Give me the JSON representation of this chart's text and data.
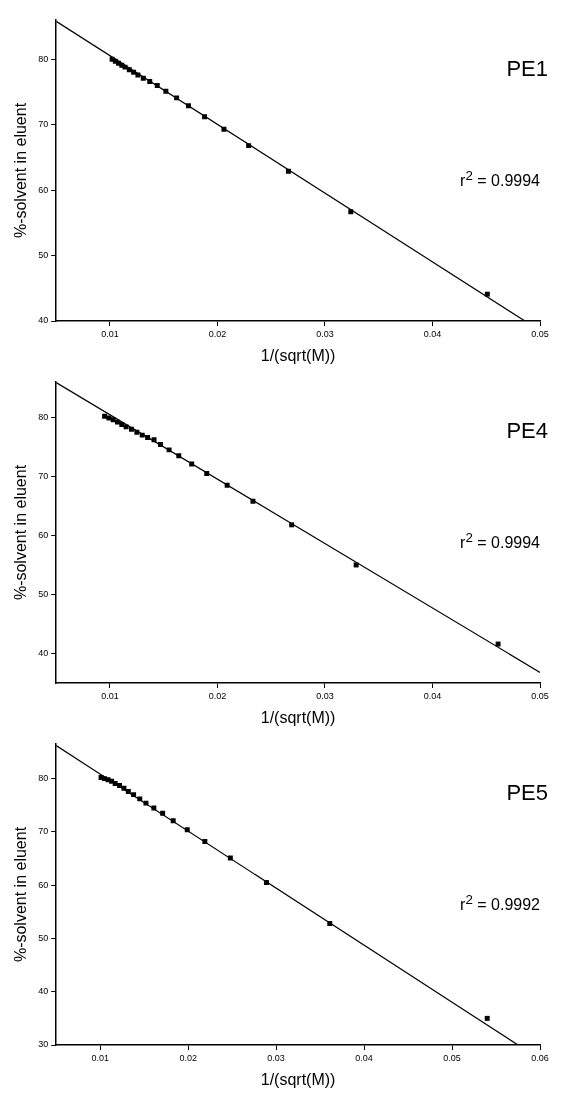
{
  "chart_data": [
    {
      "type": "scatter",
      "title": "PE1",
      "xlabel": "1/(sqrt(M))",
      "ylabel": "%-solvent in eluent",
      "annotations": [
        "r$^{2}$ = 0.9994"
      ],
      "xlim": [
        0.005,
        0.05
      ],
      "xticks": [
        0.01,
        0.02,
        0.03,
        0.04,
        0.05
      ],
      "ylim": [
        40,
        86
      ],
      "yticks": [
        40,
        50,
        60,
        70,
        80
      ],
      "series": [
        {
          "type": "scatter",
          "marker": "square",
          "color": "#000000",
          "x": [
            0.0102,
            0.0105,
            0.0108,
            0.0111,
            0.0114,
            0.0118,
            0.0122,
            0.0126,
            0.0131,
            0.0137,
            0.0144,
            0.0152,
            0.0162,
            0.0173,
            0.0188,
            0.0206,
            0.0229,
            0.0266,
            0.0324,
            0.0451
          ],
          "values": [
            80.0,
            79.7,
            79.4,
            79.1,
            78.8,
            78.4,
            78.0,
            77.6,
            77.1,
            76.6,
            76.0,
            75.1,
            74.1,
            72.9,
            71.2,
            69.3,
            66.8,
            62.9,
            56.7,
            44.1
          ]
        },
        {
          "type": "line",
          "color": "#000000",
          "x": [
            0.005,
            0.0486
          ],
          "values": [
            85.8,
            40
          ]
        }
      ]
    },
    {
      "type": "scatter",
      "title": "PE4",
      "xlabel": "1/(sqrt(M))",
      "ylabel": "%-solvent in eluent",
      "annotations": [
        "r$^{2}$ = 0.9994"
      ],
      "xlim": [
        0.005,
        0.05
      ],
      "xticks": [
        0.01,
        0.02,
        0.03,
        0.04,
        0.05
      ],
      "ylim": [
        35,
        86
      ],
      "yticks": [
        40,
        50,
        60,
        70,
        80
      ],
      "series": [
        {
          "type": "scatter",
          "marker": "square",
          "color": "#000000",
          "x": [
            0.0095,
            0.0099,
            0.0103,
            0.0107,
            0.0111,
            0.0115,
            0.012,
            0.0125,
            0.013,
            0.0135,
            0.0141,
            0.0147,
            0.0155,
            0.0164,
            0.0176,
            0.019,
            0.0209,
            0.0233,
            0.0269,
            0.0329,
            0.0461
          ],
          "values": [
            80.2,
            79.9,
            79.6,
            79.2,
            78.8,
            78.4,
            78.0,
            77.5,
            77.0,
            76.6,
            76.2,
            75.4,
            74.5,
            73.5,
            72.1,
            70.5,
            68.5,
            65.8,
            61.8,
            55.0,
            41.6
          ]
        },
        {
          "type": "line",
          "color": "#000000",
          "x": [
            0.005,
            0.05
          ],
          "values": [
            85.9,
            36.8
          ]
        }
      ]
    },
    {
      "type": "scatter",
      "title": "PE5",
      "xlabel": "1/(sqrt(M))",
      "ylabel": "%-solvent in eluent",
      "annotations": [
        "r$^{2}$ = 0.9992"
      ],
      "xlim": [
        0.005,
        0.06
      ],
      "xticks": [
        0.01,
        0.02,
        0.03,
        0.04,
        0.05,
        0.06
      ],
      "ylim": [
        30,
        86.5
      ],
      "yticks": [
        30,
        40,
        50,
        60,
        70,
        80
      ],
      "series": [
        {
          "type": "scatter",
          "marker": "square",
          "color": "#000000",
          "x": [
            0.0101,
            0.0105,
            0.0109,
            0.0113,
            0.0117,
            0.0122,
            0.0127,
            0.0132,
            0.0138,
            0.0145,
            0.0152,
            0.0161,
            0.0171,
            0.0183,
            0.0199,
            0.0219,
            0.0248,
            0.0289,
            0.0361,
            0.054
          ],
          "values": [
            80.2,
            80.0,
            79.8,
            79.5,
            79.1,
            78.7,
            78.2,
            77.6,
            77.0,
            76.2,
            75.4,
            74.5,
            73.5,
            72.1,
            70.4,
            68.2,
            65.1,
            60.5,
            52.8,
            35.0
          ]
        },
        {
          "type": "line",
          "color": "#000000",
          "x": [
            0.005,
            0.0575
          ],
          "values": [
            86.2,
            30
          ]
        }
      ]
    }
  ]
}
